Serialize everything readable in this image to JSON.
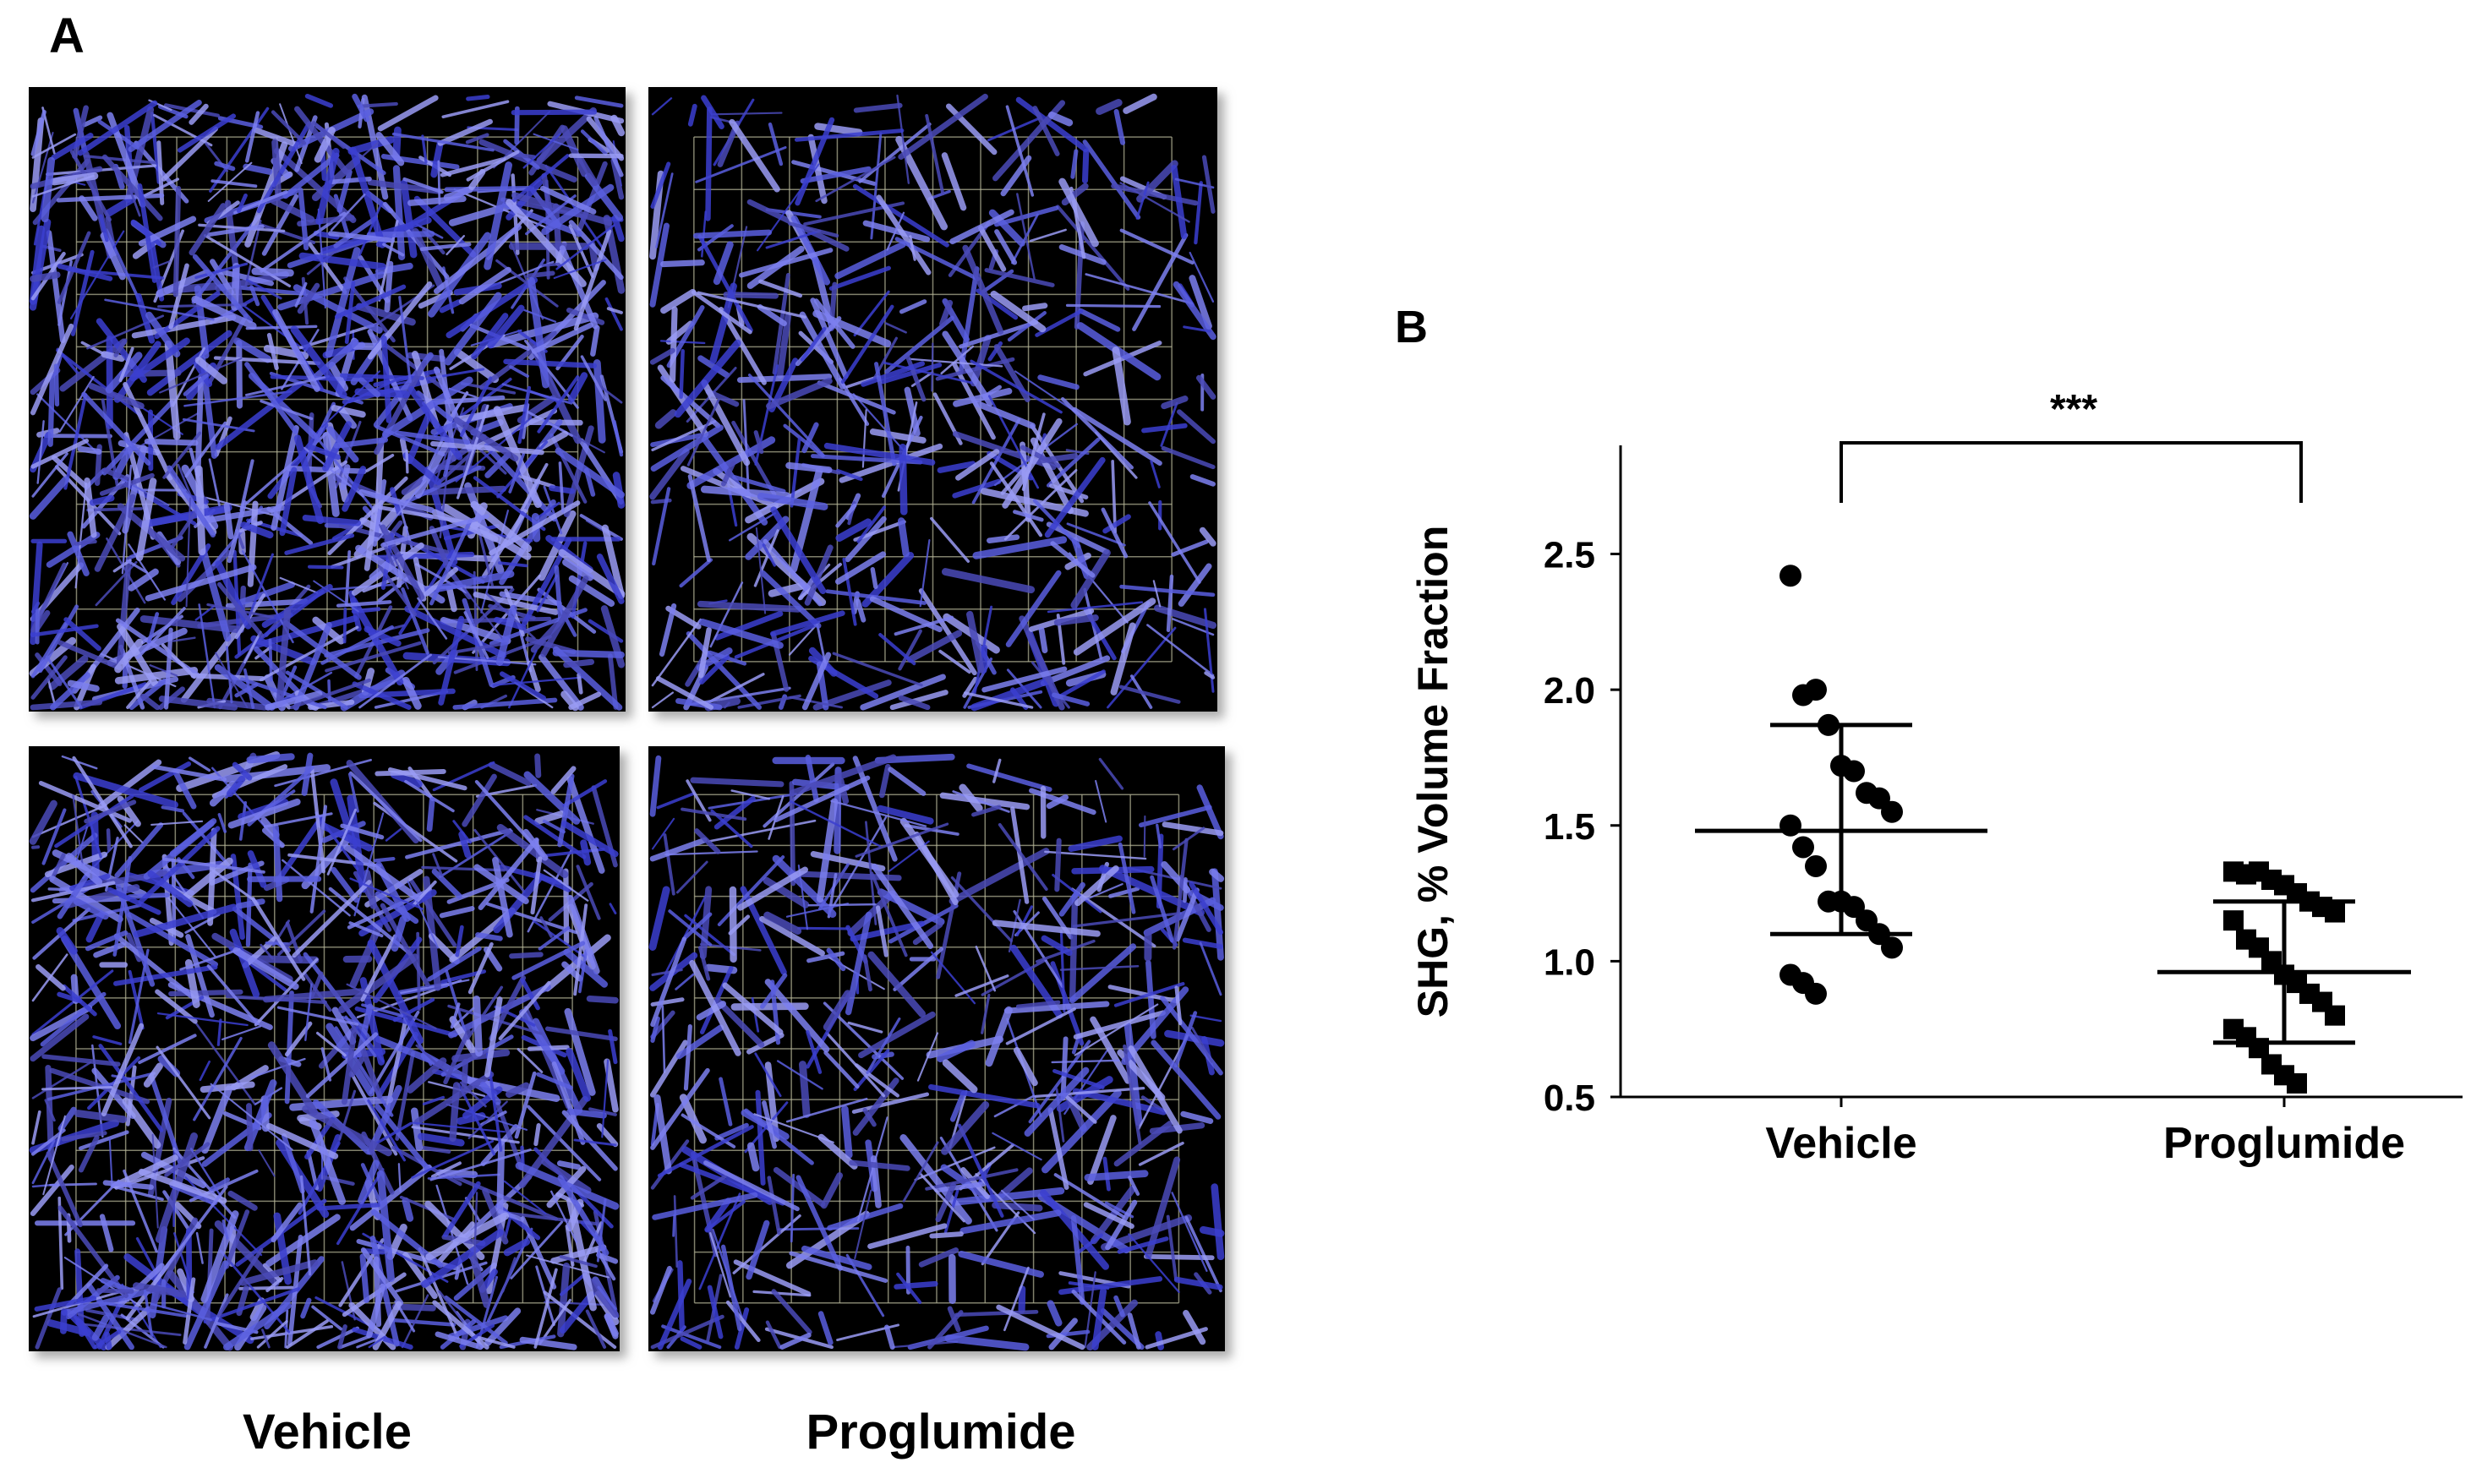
{
  "panel_a": {
    "label": "A",
    "columns": [
      "Vehicle",
      "Proglumide"
    ]
  },
  "chart_data": {
    "type": "dot",
    "panel_label": "B",
    "y_label": "SHG, % Volume Fraction",
    "categories": [
      "Vehicle",
      "Proglumide"
    ],
    "groups": [
      {
        "marker": "circle",
        "color": "#000000",
        "values": [
          2.42,
          1.98,
          2.0,
          1.87,
          1.72,
          1.7,
          1.62,
          1.6,
          1.55,
          1.5,
          1.42,
          1.35,
          1.22,
          1.22,
          1.2,
          1.15,
          1.1,
          1.05,
          0.95,
          0.92,
          0.88
        ],
        "mean": 1.48,
        "sd_upper": 1.87,
        "sd_lower": 1.1
      },
      {
        "marker": "square",
        "color": "#000000",
        "values": [
          1.33,
          1.32,
          1.33,
          1.3,
          1.28,
          1.25,
          1.22,
          1.2,
          1.18,
          1.15,
          1.08,
          1.05,
          1.0,
          0.95,
          0.92,
          0.88,
          0.85,
          0.8,
          0.75,
          0.72,
          0.68,
          0.62,
          0.58,
          0.55
        ],
        "mean": 0.96,
        "sd_upper": 1.22,
        "sd_lower": 0.7
      }
    ],
    "ylim": [
      0.5,
      2.9
    ],
    "yticks": [
      0.5,
      {
        "value": 1.0,
        "label": "1.0"
      },
      1.5,
      {
        "value": 2.0,
        "label": "2.0"
      },
      2.5
    ],
    "annotation": "***"
  }
}
